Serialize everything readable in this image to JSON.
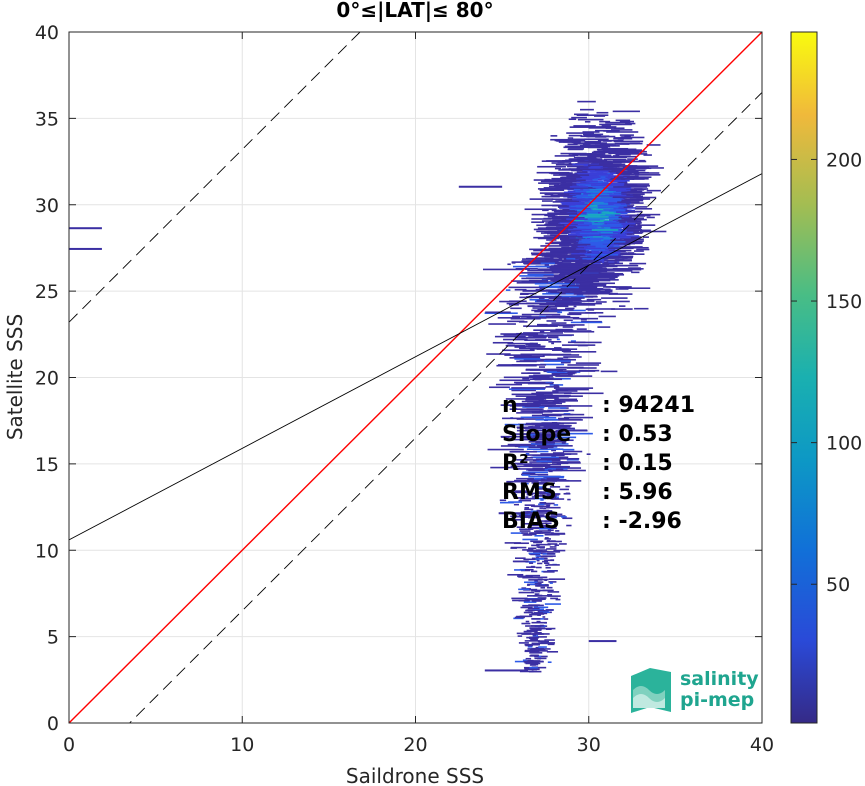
{
  "chart_data": {
    "type": "heatmap",
    "title": "0°≤|LAT|≤ 80°",
    "xlabel": "Saildrone SSS",
    "ylabel": "Satellite SSS",
    "xlim": [
      0,
      40
    ],
    "ylim": [
      0,
      40
    ],
    "xticks": [
      0,
      10,
      20,
      30,
      40
    ],
    "yticks": [
      0,
      5,
      10,
      15,
      20,
      25,
      30,
      35,
      40
    ],
    "grid": true,
    "colorbar": {
      "min": 1,
      "max": 245,
      "ticks": [
        50,
        100,
        150,
        200
      ],
      "colormap": "parula"
    },
    "reference_lines": [
      {
        "name": "1:1",
        "slope": 1,
        "intercept": 0,
        "color": "#ff0000",
        "style": "solid"
      },
      {
        "name": "fit",
        "slope": 0.53,
        "intercept": 10.6,
        "color": "#000000",
        "style": "solid"
      },
      {
        "name": "upper",
        "slope": 1,
        "intercept": 23.2,
        "color": "#000000",
        "style": "dashed"
      },
      {
        "name": "lower",
        "slope": 1,
        "intercept": -3.5,
        "color": "#000000",
        "style": "dashed"
      }
    ],
    "density_cloud": {
      "core": {
        "x_center": 30.5,
        "x_spread": 1.2,
        "y_center": 29.5,
        "y_spread": 2.3
      },
      "tail": {
        "x_center": 27.2,
        "x_spread": 0.5,
        "y_min": 3,
        "y_max": 27
      },
      "outliers": [
        {
          "x0": 0,
          "x1": 1.9,
          "y": 28.7
        },
        {
          "x0": 0,
          "x1": 1.9,
          "y": 27.5
        },
        {
          "x0": 24,
          "x1": 26.5,
          "y": 3.1
        },
        {
          "x0": 30,
          "x1": 31.6,
          "y": 4.8
        },
        {
          "x0": 24.8,
          "x1": 26.5,
          "y": 12.2
        },
        {
          "x0": 22.5,
          "x1": 25,
          "y": 31.1
        }
      ]
    },
    "stats": [
      {
        "label": "n",
        "value": ": 94241"
      },
      {
        "label": "Slope",
        "value": ": 0.53"
      },
      {
        "label": "R²",
        "value": ": 0.15"
      },
      {
        "label": "RMS",
        "value": ": 5.96"
      },
      {
        "label": "BIAS",
        "value": ": -2.96"
      }
    ]
  },
  "logo": {
    "line1": "salinity",
    "line2": "pi-mep"
  }
}
